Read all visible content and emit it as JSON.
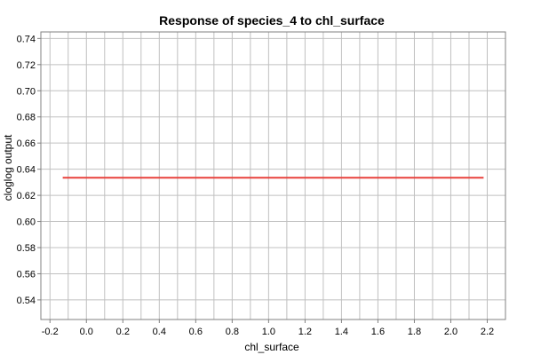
{
  "chart_data": {
    "type": "line",
    "title": "Response of species_4 to chl_surface",
    "xlabel": "chl_surface",
    "ylabel": "cloglog output",
    "xlim": [
      -0.25,
      2.3
    ],
    "ylim": [
      0.525,
      0.745
    ],
    "x_ticks": [
      -0.2,
      0.0,
      0.2,
      0.4,
      0.6,
      0.8,
      1.0,
      1.2,
      1.4,
      1.6,
      1.8,
      2.0,
      2.2
    ],
    "x_tick_labels": [
      "-0.2",
      "0.0",
      "0.2",
      "0.4",
      "0.6",
      "0.8",
      "1.0",
      "1.2",
      "1.4",
      "1.6",
      "1.8",
      "2.0",
      "2.2"
    ],
    "y_ticks": [
      0.54,
      0.56,
      0.58,
      0.6,
      0.62,
      0.64,
      0.66,
      0.68,
      0.7,
      0.72,
      0.74
    ],
    "y_tick_labels": [
      "0.54",
      "0.56",
      "0.58",
      "0.60",
      "0.62",
      "0.64",
      "0.66",
      "0.68",
      "0.70",
      "0.72",
      "0.74"
    ],
    "x_minor_ticks": [
      -0.1,
      0.1,
      0.3,
      0.5,
      0.7,
      0.9,
      1.1,
      1.3,
      1.5,
      1.7,
      1.9,
      2.1
    ],
    "grid": true,
    "series": [
      {
        "x": [
          -0.13,
          2.18
        ],
        "y": [
          0.6335,
          0.6335
        ],
        "color": "#e8413c"
      }
    ]
  }
}
